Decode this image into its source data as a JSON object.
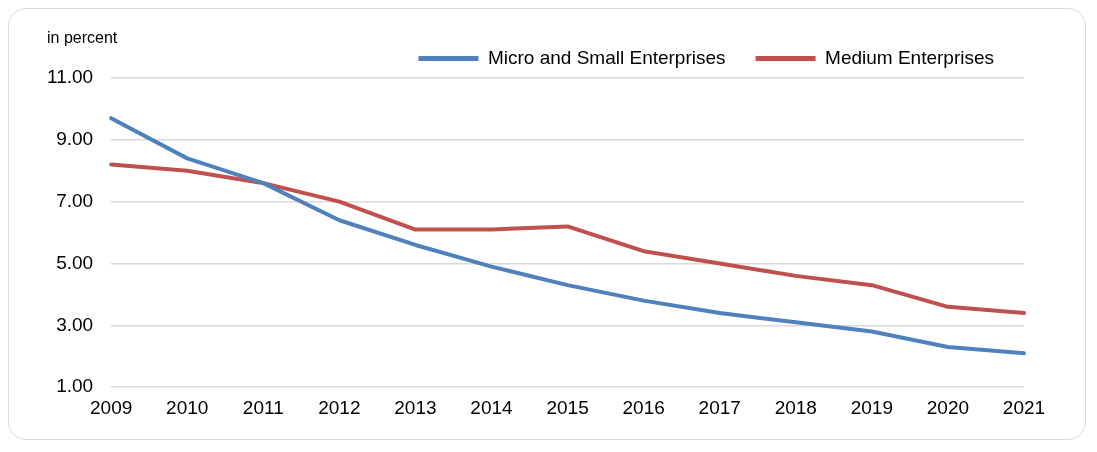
{
  "chart_data": {
    "type": "line",
    "ylabel": "in percent",
    "categories": [
      "2009",
      "2010",
      "2011",
      "2012",
      "2013",
      "2014",
      "2015",
      "2016",
      "2017",
      "2018",
      "2019",
      "2020",
      "2021"
    ],
    "series": [
      {
        "name": "Micro and Small Enterprises",
        "color": "#4f81bd",
        "values": [
          9.7,
          8.4,
          7.6,
          6.4,
          5.6,
          4.9,
          4.3,
          3.8,
          3.4,
          3.1,
          2.8,
          2.3,
          2.1
        ]
      },
      {
        "name": "Medium Enterprises",
        "color": "#c0504d",
        "values": [
          8.2,
          8.0,
          7.6,
          7.0,
          6.1,
          6.1,
          6.2,
          5.4,
          5.0,
          4.6,
          4.3,
          3.6,
          3.4
        ]
      }
    ],
    "ylim": [
      1,
      11
    ],
    "yticks": [
      {
        "value": 1,
        "label": "1.00"
      },
      {
        "value": 3,
        "label": "3.00"
      },
      {
        "value": 5,
        "label": "5.00"
      },
      {
        "value": 7,
        "label": "7.00"
      },
      {
        "value": 9,
        "label": "9.00"
      },
      {
        "value": 11,
        "label": "11.00"
      }
    ],
    "grid": "y",
    "legend": "top right",
    "marker": "none",
    "line_style": "solid"
  }
}
